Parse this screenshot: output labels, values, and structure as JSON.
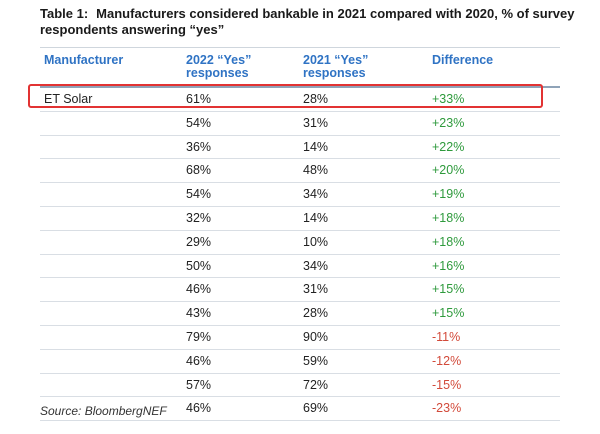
{
  "title": {
    "label": "Table 1:",
    "text": "Manufacturers considered bankable in 2021 compared with 2020, % of survey respondents answering “yes”"
  },
  "headers": {
    "manufacturer": "Manufacturer",
    "y2022_line1": "2022 “Yes”",
    "y2022_line2": "responses",
    "y2021_line1": "2021 “Yes”",
    "y2021_line2": "responses",
    "difference": "Difference"
  },
  "rows": [
    {
      "manufacturer": "ET Solar",
      "y2022": "61%",
      "y2021": "28%",
      "difference": "+33%",
      "sign": "pos"
    },
    {
      "manufacturer": "",
      "y2022": "54%",
      "y2021": "31%",
      "difference": "+23%",
      "sign": "pos"
    },
    {
      "manufacturer": "",
      "y2022": "36%",
      "y2021": "14%",
      "difference": "+22%",
      "sign": "pos"
    },
    {
      "manufacturer": "",
      "y2022": "68%",
      "y2021": "48%",
      "difference": "+20%",
      "sign": "pos"
    },
    {
      "manufacturer": "",
      "y2022": "54%",
      "y2021": "34%",
      "difference": "+19%",
      "sign": "pos"
    },
    {
      "manufacturer": "",
      "y2022": "32%",
      "y2021": "14%",
      "difference": "+18%",
      "sign": "pos"
    },
    {
      "manufacturer": "",
      "y2022": "29%",
      "y2021": "10%",
      "difference": "+18%",
      "sign": "pos"
    },
    {
      "manufacturer": "",
      "y2022": "50%",
      "y2021": "34%",
      "difference": "+16%",
      "sign": "pos"
    },
    {
      "manufacturer": "",
      "y2022": "46%",
      "y2021": "31%",
      "difference": "+15%",
      "sign": "pos"
    },
    {
      "manufacturer": "",
      "y2022": "43%",
      "y2021": "28%",
      "difference": "+15%",
      "sign": "pos"
    },
    {
      "manufacturer": "",
      "y2022": "79%",
      "y2021": "90%",
      "difference": "-11%",
      "sign": "neg"
    },
    {
      "manufacturer": "",
      "y2022": "46%",
      "y2021": "59%",
      "difference": "-12%",
      "sign": "neg"
    },
    {
      "manufacturer": "",
      "y2022": "57%",
      "y2021": "72%",
      "difference": "-15%",
      "sign": "neg"
    },
    {
      "manufacturer": "",
      "y2022": "46%",
      "y2021": "69%",
      "difference": "-23%",
      "sign": "neg"
    }
  ],
  "colors": {
    "header_text": "#2f73c4",
    "positive": "#2e9a3c",
    "negative": "#d24a3a",
    "highlight_border": "#e23333"
  },
  "source": "Source: BloombergNEF"
}
